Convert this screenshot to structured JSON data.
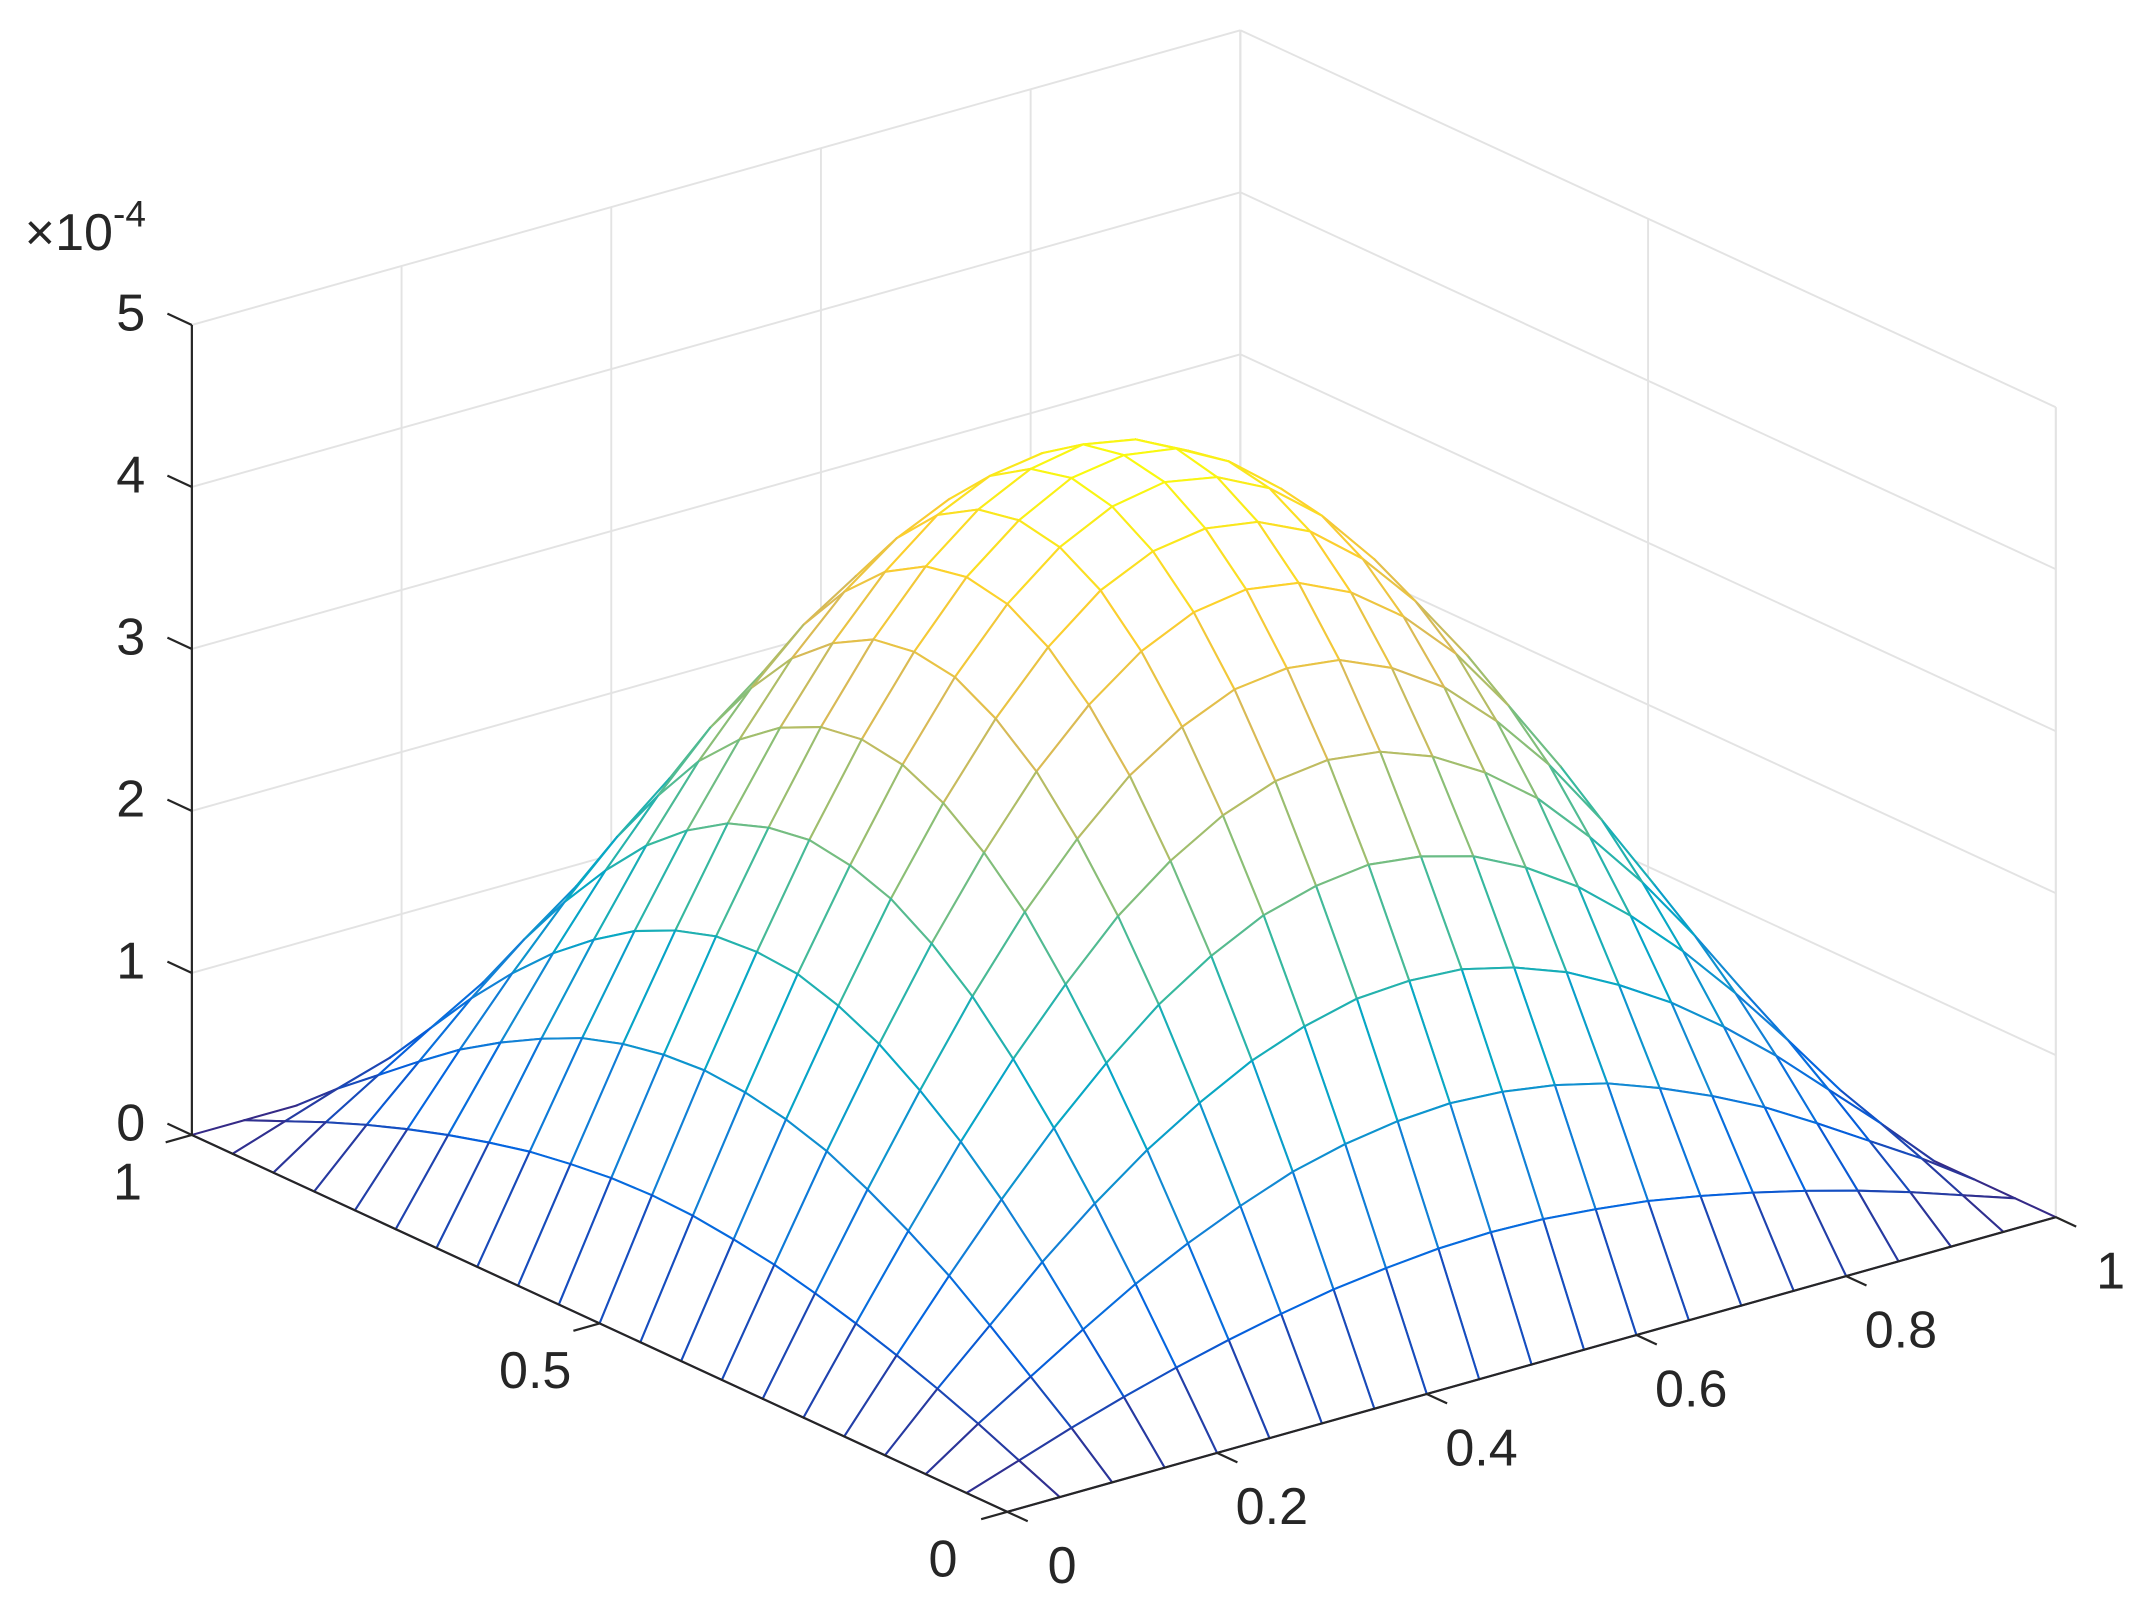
{
  "chart_data": {
    "type": "mesh",
    "z_multiplier": {
      "base": "×10",
      "exponent": "-4"
    },
    "x": [
      0,
      0.05,
      0.1,
      0.15,
      0.2,
      0.25,
      0.3,
      0.35,
      0.4,
      0.45,
      0.5,
      0.55,
      0.6,
      0.65,
      0.7,
      0.75,
      0.8,
      0.85,
      0.9,
      0.95,
      1
    ],
    "y": [
      0,
      0.05,
      0.1,
      0.15,
      0.2,
      0.25,
      0.3,
      0.35,
      0.4,
      0.45,
      0.5,
      0.55,
      0.6,
      0.65,
      0.7,
      0.75,
      0.8,
      0.85,
      0.9,
      0.95,
      1
    ],
    "z": [
      [
        0,
        0,
        0,
        0,
        0,
        0,
        0,
        0,
        0,
        0,
        0,
        0,
        0,
        0,
        0,
        0,
        0,
        0,
        0,
        0,
        0
      ],
      [
        0,
        0.11,
        0.22,
        0.32,
        0.41,
        0.49,
        0.56,
        0.62,
        0.66,
        0.69,
        0.7,
        0.69,
        0.66,
        0.62,
        0.56,
        0.49,
        0.41,
        0.32,
        0.22,
        0.11,
        0
      ],
      [
        0,
        0.22,
        0.42,
        0.62,
        0.81,
        0.97,
        1.11,
        1.23,
        1.31,
        1.36,
        1.38,
        1.36,
        1.31,
        1.23,
        1.11,
        0.97,
        0.81,
        0.62,
        0.42,
        0.22,
        0
      ],
      [
        0,
        0.32,
        0.62,
        0.92,
        1.19,
        1.43,
        1.63,
        1.8,
        1.92,
        2,
        2.02,
        2,
        1.92,
        1.8,
        1.63,
        1.43,
        1.19,
        0.92,
        0.62,
        0.32,
        0
      ],
      [
        0,
        0.41,
        0.81,
        1.19,
        1.54,
        1.85,
        2.12,
        2.33,
        2.49,
        2.58,
        2.62,
        2.58,
        2.49,
        2.33,
        2.12,
        1.85,
        1.54,
        1.19,
        0.81,
        0.41,
        0
      ],
      [
        0,
        0.49,
        0.97,
        1.43,
        1.85,
        2.22,
        2.55,
        2.8,
        2.99,
        3.11,
        3.15,
        3.11,
        2.99,
        2.8,
        2.55,
        2.22,
        1.85,
        1.43,
        0.97,
        0.49,
        0
      ],
      [
        0,
        0.56,
        1.11,
        1.63,
        2.12,
        2.55,
        2.91,
        3.21,
        3.42,
        3.56,
        3.6,
        3.56,
        3.42,
        3.21,
        2.91,
        2.55,
        2.12,
        1.63,
        1.11,
        0.56,
        0
      ],
      [
        0,
        0.62,
        1.23,
        1.8,
        2.33,
        2.8,
        3.21,
        3.53,
        3.77,
        3.92,
        3.97,
        3.92,
        3.77,
        3.53,
        3.21,
        2.8,
        2.33,
        1.8,
        1.23,
        0.62,
        0
      ],
      [
        0,
        0.66,
        1.31,
        1.92,
        2.49,
        2.99,
        3.42,
        3.77,
        4.03,
        4.18,
        4.23,
        4.18,
        4.03,
        3.77,
        3.42,
        2.99,
        2.49,
        1.92,
        1.31,
        0.66,
        0
      ],
      [
        0,
        0.69,
        1.36,
        2,
        2.58,
        3.11,
        3.56,
        3.92,
        4.18,
        4.34,
        4.4,
        4.34,
        4.18,
        3.92,
        3.56,
        3.11,
        2.58,
        2,
        1.36,
        0.69,
        0
      ],
      [
        0,
        0.7,
        1.38,
        2.02,
        2.62,
        3.15,
        3.6,
        3.97,
        4.23,
        4.4,
        4.45,
        4.4,
        4.23,
        3.97,
        3.6,
        3.15,
        2.62,
        2.02,
        1.38,
        0.7,
        0
      ],
      [
        0,
        0.69,
        1.36,
        2,
        2.58,
        3.11,
        3.56,
        3.92,
        4.18,
        4.34,
        4.4,
        4.34,
        4.18,
        3.92,
        3.56,
        3.11,
        2.58,
        2,
        1.36,
        0.69,
        0
      ],
      [
        0,
        0.66,
        1.31,
        1.92,
        2.49,
        2.99,
        3.42,
        3.77,
        4.03,
        4.18,
        4.23,
        4.18,
        4.03,
        3.77,
        3.42,
        2.99,
        2.49,
        1.92,
        1.31,
        0.66,
        0
      ],
      [
        0,
        0.62,
        1.23,
        1.8,
        2.33,
        2.8,
        3.21,
        3.53,
        3.77,
        3.92,
        3.97,
        3.92,
        3.77,
        3.53,
        3.21,
        2.8,
        2.33,
        1.8,
        1.23,
        0.62,
        0
      ],
      [
        0,
        0.56,
        1.11,
        1.63,
        2.12,
        2.55,
        2.91,
        3.21,
        3.42,
        3.56,
        3.6,
        3.56,
        3.42,
        3.21,
        2.91,
        2.55,
        2.12,
        1.63,
        1.11,
        0.56,
        0
      ],
      [
        0,
        0.49,
        0.97,
        1.43,
        1.85,
        2.22,
        2.55,
        2.8,
        2.99,
        3.11,
        3.15,
        3.11,
        2.99,
        2.8,
        2.55,
        2.22,
        1.85,
        1.43,
        0.97,
        0.49,
        0
      ],
      [
        0,
        0.41,
        0.81,
        1.19,
        1.54,
        1.85,
        2.12,
        2.33,
        2.49,
        2.58,
        2.62,
        2.58,
        2.49,
        2.33,
        2.12,
        1.85,
        1.54,
        1.19,
        0.81,
        0.41,
        0
      ],
      [
        0,
        0.32,
        0.62,
        0.92,
        1.19,
        1.43,
        1.63,
        1.8,
        1.92,
        2,
        2.02,
        2,
        1.92,
        1.8,
        1.63,
        1.43,
        1.19,
        0.92,
        0.62,
        0.32,
        0
      ],
      [
        0,
        0.22,
        0.42,
        0.62,
        0.81,
        0.97,
        1.11,
        1.23,
        1.31,
        1.36,
        1.38,
        1.36,
        1.31,
        1.23,
        1.11,
        0.97,
        0.81,
        0.62,
        0.42,
        0.22,
        0
      ],
      [
        0,
        0.11,
        0.22,
        0.32,
        0.41,
        0.49,
        0.56,
        0.62,
        0.66,
        0.69,
        0.7,
        0.69,
        0.66,
        0.62,
        0.56,
        0.49,
        0.41,
        0.32,
        0.22,
        0.11,
        0
      ],
      [
        0,
        0,
        0,
        0,
        0,
        0,
        0,
        0,
        0,
        0,
        0,
        0,
        0,
        0,
        0,
        0,
        0,
        0,
        0,
        0,
        0
      ]
    ],
    "xlim": [
      0,
      1
    ],
    "ylim": [
      0,
      1
    ],
    "zlim": [
      0,
      5
    ],
    "xticks": [
      0,
      0.2,
      0.4,
      0.6,
      0.8,
      1
    ],
    "yticks": [
      0,
      0.5,
      1
    ],
    "zticks": [
      0,
      1,
      2,
      3,
      4,
      5
    ],
    "grid": true,
    "colormap": "parula"
  }
}
